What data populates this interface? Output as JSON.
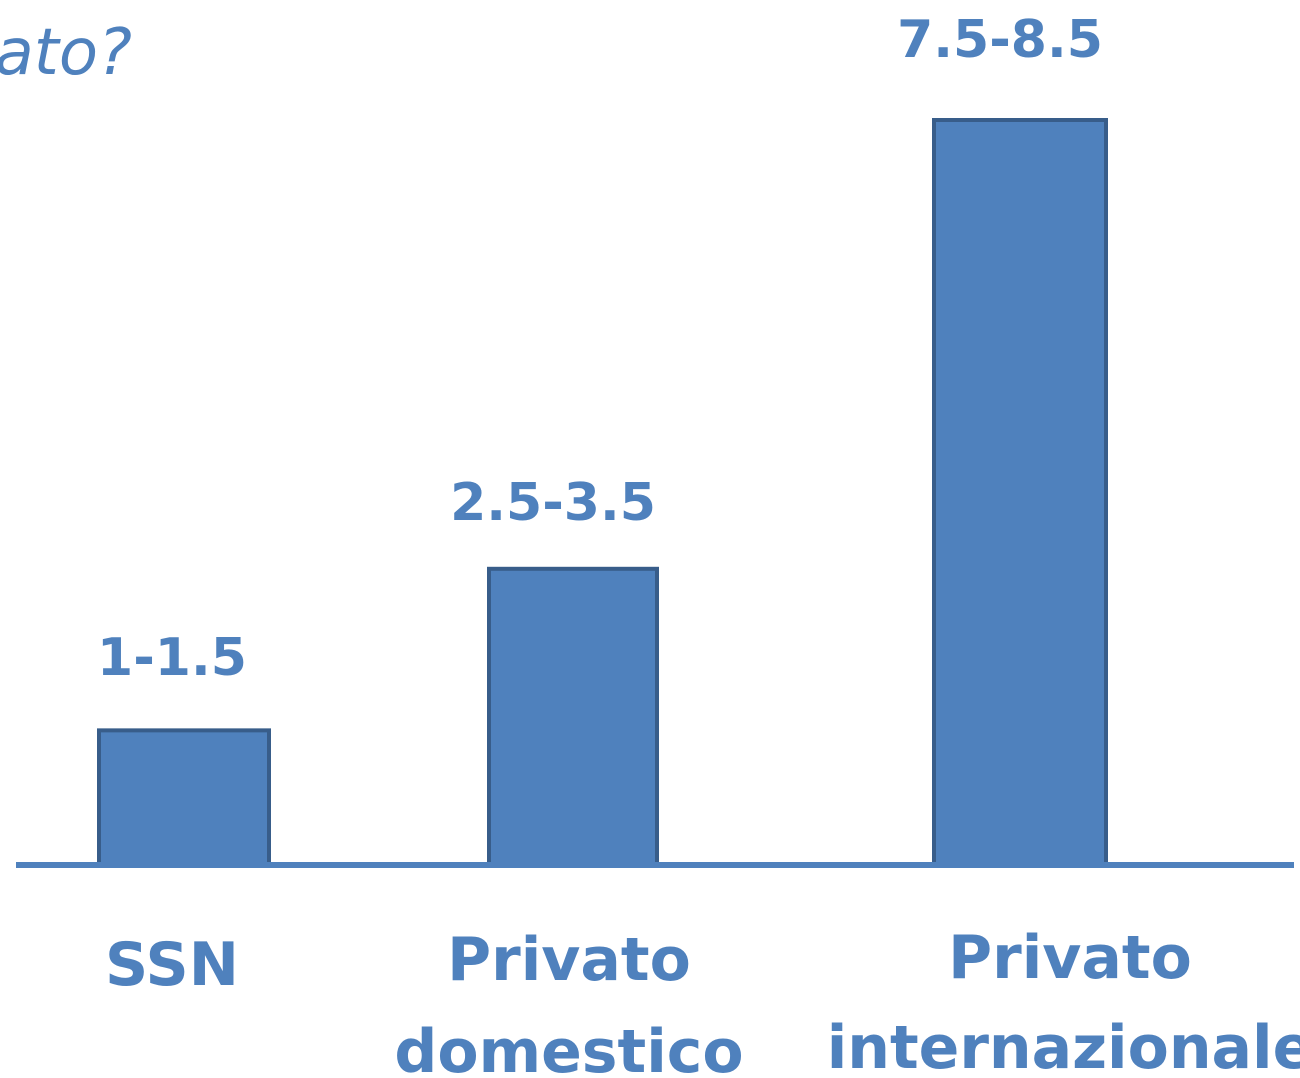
{
  "chart_data": {
    "type": "bar",
    "title": "ato?",
    "categories": [
      [
        "SSN"
      ],
      [
        "Privato",
        "domestico"
      ],
      [
        "Privato",
        "internazionale"
      ]
    ],
    "ranges": [
      [
        1,
        1.5
      ],
      [
        2.5,
        3.5
      ],
      [
        7.5,
        8.5
      ]
    ],
    "values": [
      1.5,
      3.3,
      8.3
    ],
    "data_labels": [
      "1-1.5",
      "2.5-3.5",
      "7.5-8.5"
    ],
    "xlabel": "",
    "ylabel": "",
    "ylim": [
      0,
      8.3
    ],
    "grid": false,
    "legend": "none"
  },
  "colors": {
    "bar_fill": "#4f81bd",
    "bar_stroke": "#385d8a",
    "text": "#4f81bd",
    "axis": "#4f81bd"
  }
}
